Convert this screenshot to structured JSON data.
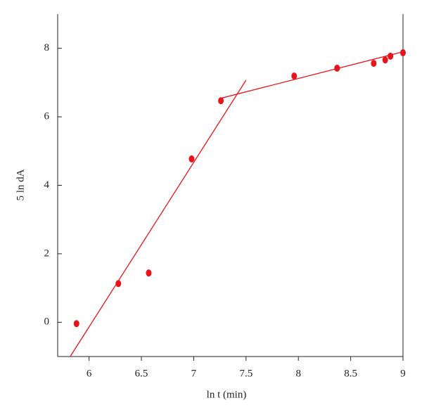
{
  "chart_data": {
    "type": "scatter",
    "xlabel": "ln t (min)",
    "ylabel": "5 ln dA",
    "x": [
      5.88,
      6.28,
      6.57,
      6.98,
      7.26,
      7.96,
      8.37,
      8.72,
      8.83,
      8.88,
      9.0
    ],
    "values": [
      -0.04,
      1.13,
      1.44,
      4.77,
      6.47,
      7.19,
      7.42,
      7.56,
      7.66,
      7.77,
      7.87
    ],
    "color": "#e8141a",
    "fit_lines": [
      {
        "x": [
          5.82,
          7.5
        ],
        "values": [
          -1,
          7.07
        ]
      },
      {
        "x": [
          7.27,
          9.0
        ],
        "values": [
          6.55,
          7.9
        ]
      }
    ],
    "xlim": [
      5.7,
      9
    ],
    "xticks": [
      6,
      6.5,
      7,
      7.5,
      8,
      8.5,
      9
    ],
    "ylim": [
      -1,
      9
    ],
    "yticks": [
      0,
      2,
      4,
      6,
      8
    ]
  }
}
